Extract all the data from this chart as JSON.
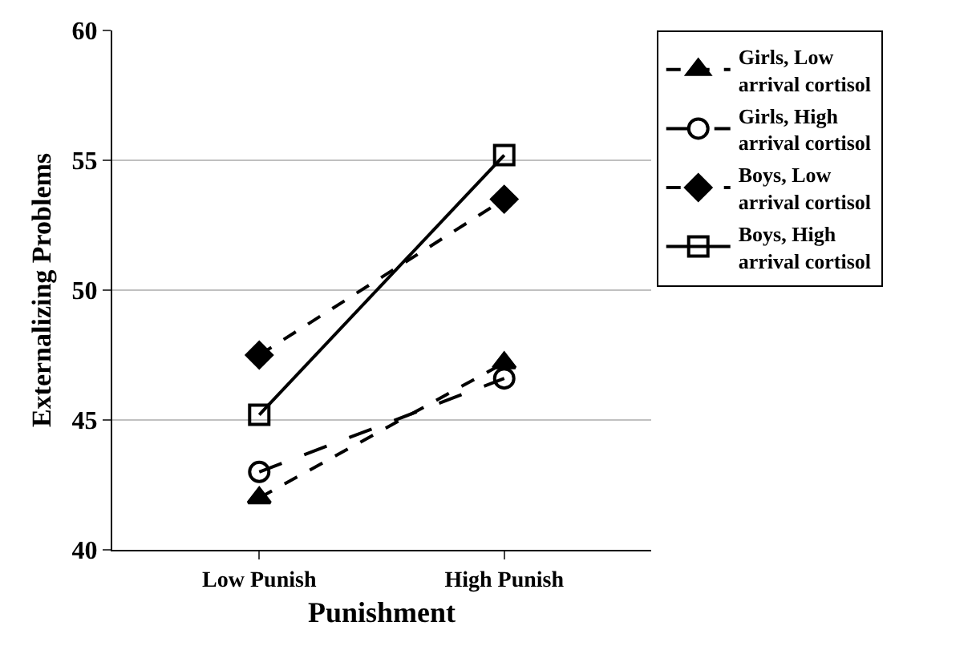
{
  "chart_data": {
    "type": "line",
    "xlabel": "Punishment",
    "ylabel": "Externalizing Problems",
    "categories": [
      "Low Punish",
      "High Punish"
    ],
    "series": [
      {
        "name": "Girls, Low arrival cortisol",
        "color": "#000000",
        "values": [
          42,
          47.2
        ],
        "marker": "triangle",
        "line_style": "dashed"
      },
      {
        "name": "Girls, High arrival cortisol",
        "color": "#000000",
        "values": [
          43,
          46.6
        ],
        "marker": "circle",
        "line_style": "longdash"
      },
      {
        "name": "Boys, Low arrival cortisol",
        "color": "#000000",
        "values": [
          47.5,
          53.5
        ],
        "marker": "diamond",
        "line_style": "dashed"
      },
      {
        "name": "Boys, High arrival cortisol",
        "color": "#000000",
        "values": [
          45.2,
          55.2
        ],
        "marker": "square",
        "line_style": "solid"
      }
    ],
    "ylim": [
      40,
      60
    ],
    "yticks": [
      40,
      45,
      50,
      55,
      60
    ],
    "grid": "y",
    "legend": "right"
  }
}
